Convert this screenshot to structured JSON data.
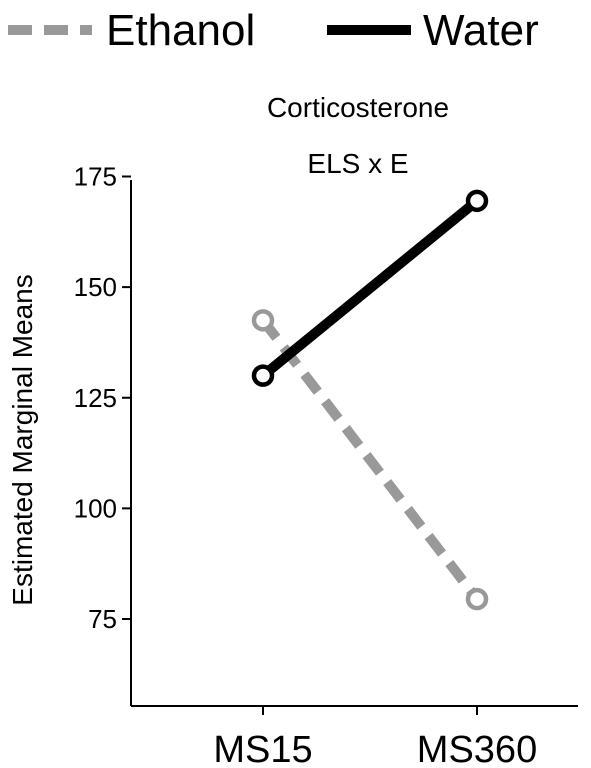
{
  "chart_data": {
    "type": "line",
    "title": "Corticosterone",
    "subtitle": "ELS x E",
    "xlabel": "",
    "ylabel": "Estimated Marginal Means",
    "categories": [
      "MS15",
      "MS360"
    ],
    "yticks": [
      75,
      100,
      125,
      150,
      175
    ],
    "ylim": [
      55,
      178
    ],
    "legend_position": "top",
    "grid": false,
    "series": [
      {
        "name": "Ethanol",
        "values": [
          142.5,
          79.5
        ],
        "color": "#999999",
        "style": "dashed"
      },
      {
        "name": "Water",
        "values": [
          130,
          169.5
        ],
        "color": "#000000",
        "style": "solid"
      }
    ]
  }
}
